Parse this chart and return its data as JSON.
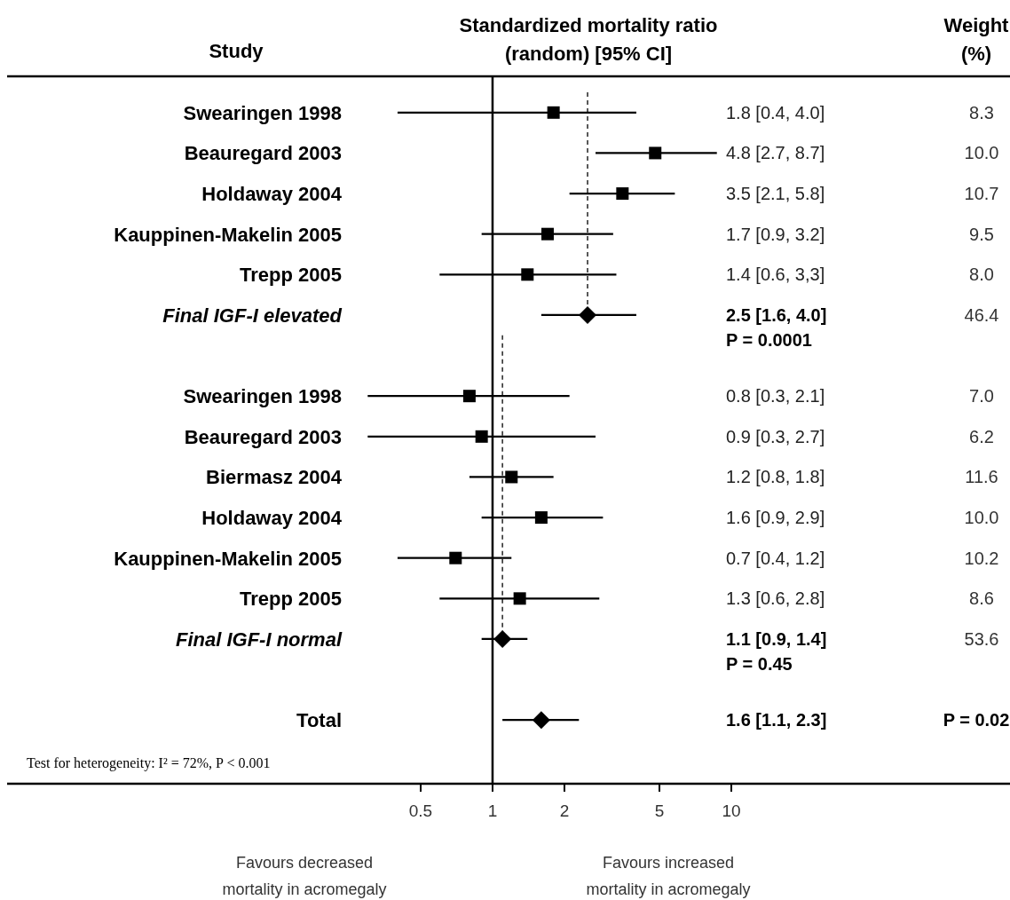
{
  "chart_data": {
    "type": "scatter",
    "title": "Standardized mortality ratio\n(random) [95% CI]",
    "ylabel": "Study",
    "orientation": "horizontal",
    "log": "x",
    "xlim": [
      0.25,
      10
    ],
    "xticks": [
      0.5,
      1,
      2,
      5,
      10
    ],
    "grid": false,
    "categories": [
      "Swearingen 1998",
      "Beauregard 2003",
      "Holdaway 2004",
      "Kauppinen-Makelin 2005",
      "Trepp 2005",
      "Final IGF-I elevated",
      null,
      "Swearingen 1998",
      "Beauregard 2003",
      "Biermasz  2004",
      "Holdaway 2004",
      "Kauppinen-Makelin 2005",
      "Trepp 2005",
      "Final IGF-I normal",
      null,
      "Total"
    ],
    "series": [
      {
        "marker": "square",
        "color": "#000000",
        "values": [
          1.8,
          4.8,
          3.5,
          1.7,
          1.4,
          null,
          null,
          0.8,
          0.9,
          1.2,
          1.6,
          0.7,
          1.3,
          null,
          null,
          null
        ],
        "errors": [
          [
            0.4,
            4.0
          ],
          [
            2.7,
            8.7
          ],
          [
            2.1,
            5.8
          ],
          [
            0.9,
            3.2
          ],
          [
            0.6,
            3.3
          ],
          null,
          null,
          [
            0.3,
            2.1
          ],
          [
            0.3,
            2.7
          ],
          [
            0.8,
            1.8
          ],
          [
            0.9,
            2.9
          ],
          [
            0.4,
            1.2
          ],
          [
            0.6,
            2.8
          ],
          null,
          null,
          null
        ],
        "value_labels": [
          "1.8 [0.4, 4.0]",
          "4.8 [2.7, 8.7]",
          "3.5 [2.1, 5.8]",
          "1.7 [0.9, 3.2]",
          "1.4 [0.6, 3,3]",
          null,
          null,
          "0.8 [0.3, 2.1]",
          "0.9 [0.3, 2.7]",
          "1.2 [0.8, 1.8]",
          "1.6 [0.9, 2.9]",
          "0.7 [0.4, 1.2]",
          "1.3 [0.6, 2.8]",
          null,
          null,
          null
        ]
      },
      {
        "marker": "diamond",
        "color": "#000000",
        "values": [
          null,
          null,
          null,
          null,
          null,
          2.5,
          null,
          null,
          null,
          null,
          null,
          null,
          null,
          1.1,
          null,
          1.6
        ],
        "errors": [
          null,
          null,
          null,
          null,
          null,
          [
            1.6,
            4.0
          ],
          null,
          null,
          null,
          null,
          null,
          null,
          null,
          [
            0.9,
            1.4
          ],
          null,
          [
            1.1,
            2.3
          ]
        ]
      }
    ],
    "ref_lines": [
      {
        "axis": "x",
        "value": 1,
        "line_style": "solid"
      },
      {
        "axis": "x",
        "value": 2.5,
        "line_style": "dashed"
      },
      {
        "axis": "x",
        "value": 1.1,
        "line_style": "dashed"
      }
    ],
    "annotations": [
      "8.3",
      "10.0",
      "10.7",
      "9.5",
      "8.0",
      "46.4",
      "7.0",
      "6.2",
      "11.6",
      "10.0",
      "10.2",
      "8.6",
      "53.6",
      "P = 0.02",
      "Weight\n(%)",
      "Test for heterogeneity: I² = 72%, P < 0.001",
      "Favours decreased\nmortality in acromegaly",
      "Favours increased\nmortality in acromegaly",
      "2.5 [1.6, 4.0]\nP = 0.0001",
      "1.1 [0.9, 1.4]\nP = 0.45",
      "1.6 [1.1, 2.3]"
    ]
  }
}
